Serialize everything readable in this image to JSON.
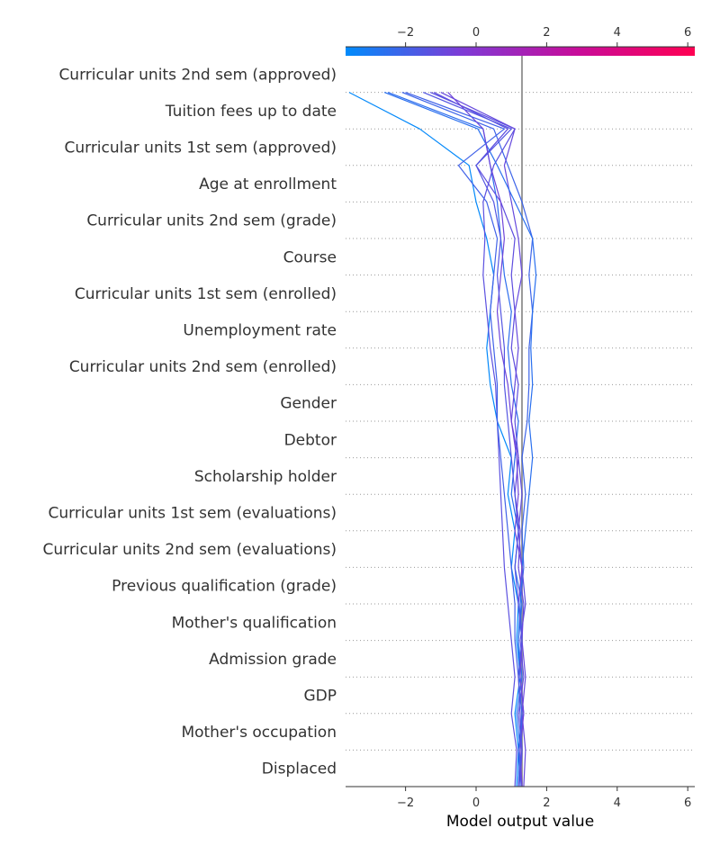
{
  "chart_data": {
    "type": "line",
    "title": "",
    "xlabel": "Model output value",
    "ylabel": "",
    "xlim": [
      -3.7,
      6.2
    ],
    "x_ticks": [
      -2,
      0,
      2,
      4,
      6
    ],
    "x_tick_labels": [
      "−2",
      "0",
      "2",
      "4",
      "6"
    ],
    "base_value": 1.3,
    "grid": "dotted horizontal lines between features",
    "colorbar": {
      "location": "top",
      "colors": [
        "#008bfb",
        "#7e3bd6",
        "#c80c99",
        "#ff0052"
      ],
      "range": [
        -3.7,
        6.2
      ]
    },
    "features": [
      "Curricular units 2nd sem (approved)",
      "Tuition fees up to date",
      "Curricular units 1st sem (approved)",
      "Age at enrollment",
      "Curricular units 2nd sem (grade)",
      "Course",
      "Curricular units 1st sem (enrolled)",
      "Unemployment rate",
      "Curricular units 2nd sem (enrolled)",
      "Gender",
      "Debtor",
      "Scholarship holder",
      "Curricular units 1st sem (evaluations)",
      "Curricular units 2nd sem (evaluations)",
      "Previous qualification (grade)",
      "Mother's qualification",
      "Admission grade",
      "GDP",
      "Mother's occupation",
      "Displaced"
    ],
    "series_note": "Each series lists cumulative model output at the bottom of the plot, then at each feature boundary from Displaced up to Curricular units 2nd sem (approved); the last value is the final prediction at the top.",
    "series": [
      {
        "values": [
          1.15,
          1.2,
          1.1,
          1.25,
          1.15,
          1.2,
          1.0,
          1.1,
          0.9,
          1.0,
          0.6,
          0.4,
          0.3,
          0.4,
          0.5,
          0.3,
          0.0,
          -0.2,
          -1.6,
          -3.6
        ]
      },
      {
        "values": [
          1.2,
          1.25,
          1.3,
          1.2,
          1.3,
          1.25,
          1.35,
          1.3,
          1.4,
          1.3,
          1.45,
          1.5,
          1.5,
          1.6,
          1.5,
          1.6,
          1.3,
          0.9,
          0.5,
          -2.1
        ]
      },
      {
        "values": [
          1.3,
          1.2,
          1.35,
          1.25,
          1.2,
          1.3,
          1.1,
          1.2,
          1.0,
          1.1,
          1.2,
          1.0,
          0.9,
          1.0,
          0.8,
          0.7,
          0.6,
          0.4,
          0.2,
          -2.5
        ]
      },
      {
        "values": [
          1.25,
          1.3,
          1.2,
          1.35,
          1.25,
          1.4,
          1.3,
          1.2,
          1.3,
          1.2,
          1.1,
          1.2,
          1.0,
          1.1,
          1.0,
          1.1,
          0.7,
          0.0,
          0.9,
          -1.2
        ]
      },
      {
        "values": [
          1.1,
          1.15,
          1.0,
          1.1,
          1.0,
          0.9,
          0.8,
          0.75,
          0.7,
          0.65,
          0.6,
          0.55,
          0.4,
          0.3,
          0.2,
          0.25,
          0.2,
          0.5,
          1.1,
          -1.3
        ]
      },
      {
        "values": [
          1.35,
          1.4,
          1.3,
          1.4,
          1.3,
          1.35,
          1.2,
          1.25,
          1.1,
          1.2,
          1.0,
          1.1,
          1.2,
          1.1,
          1.3,
          1.2,
          1.0,
          0.8,
          1.1,
          -1.0
        ]
      },
      {
        "values": [
          1.2,
          1.25,
          1.15,
          1.3,
          1.2,
          1.25,
          1.3,
          1.4,
          1.5,
          1.6,
          1.5,
          1.6,
          1.55,
          1.6,
          1.7,
          1.6,
          1.1,
          0.6,
          0.05,
          -2.6
        ]
      },
      {
        "values": [
          1.3,
          1.25,
          1.35,
          1.25,
          1.3,
          1.2,
          1.3,
          1.1,
          1.2,
          1.15,
          1.0,
          0.9,
          0.7,
          0.6,
          0.7,
          0.8,
          0.7,
          0.4,
          0.2,
          -0.8
        ]
      },
      {
        "values": [
          1.25,
          1.2,
          1.3,
          1.2,
          1.1,
          1.1,
          1.0,
          0.9,
          0.8,
          0.7,
          0.6,
          0.6,
          0.5,
          0.4,
          0.5,
          0.6,
          0.3,
          -0.5,
          0.8,
          -2.0
        ]
      },
      {
        "values": [
          1.2,
          1.3,
          1.25,
          1.2,
          1.3,
          1.2,
          1.1,
          1.2,
          1.1,
          1.0,
          0.9,
          0.8,
          0.8,
          0.7,
          0.6,
          0.7,
          0.5,
          0.0,
          1.0,
          -1.5
        ]
      }
    ]
  }
}
